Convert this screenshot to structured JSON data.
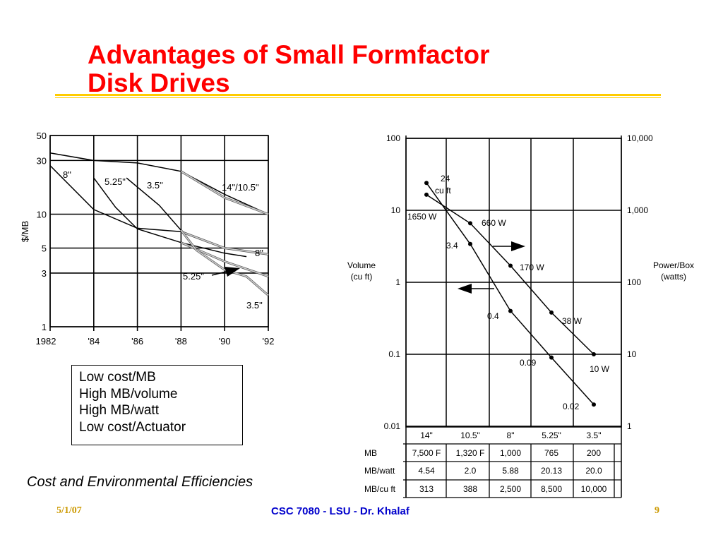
{
  "slide": {
    "title_line1": "Advantages of Small Formfactor",
    "title_line2": "Disk Drives",
    "advantages": [
      "Low cost/MB",
      "High MB/volume",
      "High MB/watt",
      "Low cost/Actuator"
    ],
    "caption": "Cost and Environmental Efficiencies",
    "footer_date": "5/1/07",
    "footer_course": "CSC 7080 - LSU - Dr. Khalaf",
    "footer_page": "9"
  },
  "colors": {
    "title": "#ff0000",
    "rule": "#ffcc00",
    "footer_course": "#0000cc",
    "footer_side": "#cc9900",
    "gray_series": "#999999"
  },
  "chart_data": [
    {
      "type": "line",
      "title": "",
      "ylabel": "$/MB",
      "xlabel": "",
      "y_scale": "log",
      "ylim": [
        1,
        50
      ],
      "xlim": [
        1982,
        1992
      ],
      "x_tick_labels": [
        "1982",
        "'84",
        "'86",
        "'88",
        "'90",
        "'92"
      ],
      "y_tick_labels": [
        "50",
        "30",
        "10",
        "5",
        "3",
        "1"
      ],
      "series": [
        {
          "name": "14\"/10.5\"",
          "color": "black",
          "points": [
            [
              1982,
              35
            ],
            [
              1984,
              30
            ],
            [
              1986,
              28.5
            ],
            [
              1988,
              24
            ],
            [
              1990,
              15
            ],
            [
              1992,
              10
            ]
          ]
        },
        {
          "name": "14\"/10.5\"",
          "color": "gray",
          "points": [
            [
              1988,
              24
            ],
            [
              1990,
              14
            ],
            [
              1992,
              10
            ]
          ]
        },
        {
          "name": "8\"",
          "color": "black",
          "points": [
            [
              1982,
              27
            ],
            [
              1984,
              11
            ],
            [
              1986,
              7.5
            ],
            [
              1988,
              7
            ],
            [
              1990,
              5
            ]
          ]
        },
        {
          "name": "8\"",
          "color": "gray",
          "points": [
            [
              1988,
              7
            ],
            [
              1990,
              5
            ],
            [
              1992,
              4.4
            ]
          ]
        },
        {
          "name": "5.25\"",
          "color": "black",
          "points": [
            [
              1984,
              21
            ],
            [
              1985,
              11.5
            ],
            [
              1986,
              7.4
            ],
            [
              1988,
              5.6
            ],
            [
              1990,
              4.5
            ],
            [
              1991,
              4.2
            ]
          ]
        },
        {
          "name": "5.25\"",
          "color": "gray",
          "points": [
            [
              1988,
              5.6
            ],
            [
              1990,
              3.8
            ],
            [
              1992,
              2.8
            ]
          ]
        },
        {
          "name": "3.5\"",
          "color": "black",
          "points": [
            [
              1985.5,
              21
            ],
            [
              1987,
              12
            ],
            [
              1988,
              7.2
            ]
          ]
        },
        {
          "name": "3.5\"",
          "color": "gray",
          "points": [
            [
              1988,
              7.2
            ],
            [
              1988.7,
              4.8
            ],
            [
              1990,
              3.2
            ],
            [
              1991,
              2.8
            ],
            [
              1992,
              1.9
            ]
          ]
        }
      ],
      "labels": [
        "8\"",
        "5.25\"",
        "3.5\"",
        "14\"/10.5\"",
        "8\"",
        "5.25\"",
        "3.5\""
      ]
    },
    {
      "type": "line",
      "title": "",
      "y_scale": "log",
      "ylabel_left": "Volume (cu ft)",
      "ylabel_right": "Power/Box (watts)",
      "ylim_left": [
        0.01,
        100
      ],
      "ylim_right": [
        1,
        10000
      ],
      "left_tick_labels": [
        "100",
        "10",
        "1",
        "0.1",
        "0.01"
      ],
      "right_tick_labels": [
        "10,000",
        "1,000",
        "100",
        "10",
        "1"
      ],
      "categories": [
        "14\"",
        "10.5\"",
        "8\"",
        "5.25\"",
        "3.5\""
      ],
      "series": [
        {
          "name": "Volume",
          "axis": "left",
          "values": [
            24,
            3.4,
            0.4,
            0.09,
            0.02
          ],
          "point_labels": [
            "24 cu ft",
            "3.4",
            "0.4",
            "0.09",
            "0.02"
          ]
        },
        {
          "name": "Power",
          "axis": "right",
          "values": [
            1650,
            660,
            170,
            38,
            10
          ],
          "point_labels": [
            "1650 W",
            "660 W",
            "170 W",
            "38 W",
            "10 W"
          ]
        }
      ],
      "table": {
        "rows": [
          {
            "label": "MB",
            "values": [
              "7,500 F",
              "1,320 F",
              "1,000",
              "765",
              "200"
            ]
          },
          {
            "label": "MB/watt",
            "values": [
              "4.54",
              "2.0",
              "5.88",
              "20.13",
              "20.0"
            ]
          },
          {
            "label": "MB/cu ft",
            "values": [
              "313",
              "388",
              "2,500",
              "8,500",
              "10,000"
            ]
          }
        ]
      }
    }
  ]
}
